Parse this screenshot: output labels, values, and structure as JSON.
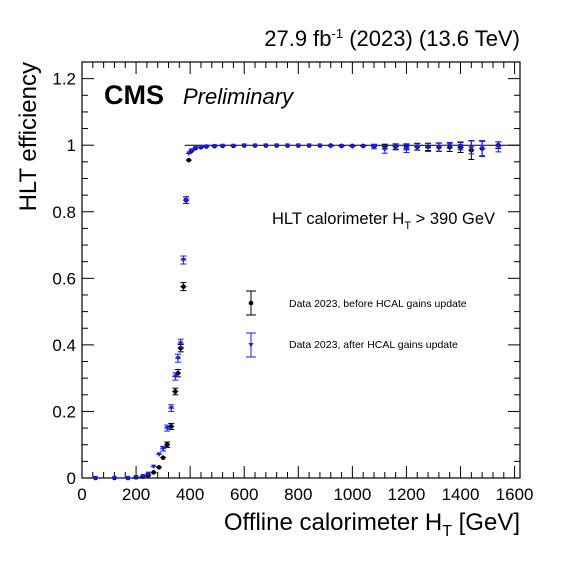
{
  "header": {
    "lumi_text": "27.9 fb",
    "lumi_sup": "-1",
    "lumi_rest": " (2023) (13.6 TeV)"
  },
  "branding": {
    "experiment": "CMS",
    "status": "Preliminary"
  },
  "chart_data": {
    "type": "scatter",
    "title": "",
    "xlabel": "Offline calorimeter H",
    "xlabel_sub": "T",
    "xlabel_unit": " [GeV]",
    "ylabel": "HLT efficiency",
    "xlim": [
      0,
      1620
    ],
    "ylim": [
      0,
      1.25
    ],
    "x_ticks": [
      0,
      200,
      400,
      600,
      800,
      1000,
      1200,
      1400,
      1600
    ],
    "x_tick_labels": [
      "0",
      "200",
      "400",
      "600",
      "800",
      "1000",
      "1200",
      "1400",
      "1600"
    ],
    "y_ticks": [
      0,
      0.2,
      0.4,
      0.6,
      0.8,
      1,
      1.2
    ],
    "y_tick_labels": [
      "0",
      "0.2",
      "0.4",
      "0.6",
      "0.8",
      "1",
      "1.2"
    ],
    "grid": false,
    "selection_label": {
      "main": "HLT calorimeter H",
      "sub": "T",
      "rest": " > 390 GeV"
    },
    "reference_line": 1.0,
    "legend_position": "middle-right",
    "series": [
      {
        "name": "Data 2023, before HCAL gains update",
        "color": "#000000",
        "marker": "circle",
        "points": [
          [
            50,
            0.0,
            0.0
          ],
          [
            120,
            0.0,
            0.0
          ],
          [
            170,
            0.0,
            0.0
          ],
          [
            200,
            0.002,
            0.001
          ],
          [
            225,
            0.004,
            0.002
          ],
          [
            245,
            0.008,
            0.003
          ],
          [
            265,
            0.017,
            0.004
          ],
          [
            285,
            0.032,
            0.005
          ],
          [
            300,
            0.061,
            0.006
          ],
          [
            315,
            0.1,
            0.008
          ],
          [
            330,
            0.155,
            0.009
          ],
          [
            345,
            0.26,
            0.01
          ],
          [
            355,
            0.315,
            0.011
          ],
          [
            365,
            0.39,
            0.011
          ],
          [
            375,
            0.575,
            0.012
          ],
          [
            385,
            0.835,
            0.01
          ],
          [
            395,
            0.955,
            0.006
          ],
          [
            405,
            0.983,
            0.004
          ],
          [
            420,
            0.991,
            0.003
          ],
          [
            440,
            0.994,
            0.003
          ],
          [
            460,
            0.996,
            0.002
          ],
          [
            490,
            0.997,
            0.002
          ],
          [
            520,
            0.998,
            0.002
          ],
          [
            560,
            0.998,
            0.002
          ],
          [
            600,
            0.999,
            0.002
          ],
          [
            640,
            0.999,
            0.002
          ],
          [
            680,
            0.999,
            0.002
          ],
          [
            720,
            0.999,
            0.002
          ],
          [
            760,
            0.999,
            0.002
          ],
          [
            800,
            0.999,
            0.002
          ],
          [
            840,
            0.999,
            0.003
          ],
          [
            880,
            0.999,
            0.003
          ],
          [
            920,
            0.999,
            0.003
          ],
          [
            960,
            0.998,
            0.004
          ],
          [
            1000,
            0.998,
            0.004
          ],
          [
            1040,
            0.998,
            0.005
          ],
          [
            1080,
            0.997,
            0.006
          ],
          [
            1120,
            0.996,
            0.007
          ],
          [
            1160,
            0.996,
            0.008
          ],
          [
            1200,
            0.995,
            0.009
          ],
          [
            1240,
            0.995,
            0.01
          ],
          [
            1280,
            0.995,
            0.011
          ],
          [
            1320,
            0.994,
            0.012
          ],
          [
            1360,
            0.994,
            0.013
          ],
          [
            1400,
            0.993,
            0.015
          ],
          [
            1440,
            0.985,
            0.028
          ],
          [
            1480,
            0.99,
            0.022
          ],
          [
            1540,
            1.0,
            0.01
          ]
        ]
      },
      {
        "name": "Data 2023, after HCAL gains update",
        "color": "#1a1aff",
        "marker": "triangle-down",
        "points": [
          [
            50,
            0.0,
            0.0
          ],
          [
            120,
            0.0,
            0.0
          ],
          [
            170,
            0.0,
            0.0
          ],
          [
            200,
            0.003,
            0.001
          ],
          [
            225,
            0.006,
            0.002
          ],
          [
            245,
            0.013,
            0.003
          ],
          [
            265,
            0.034,
            0.004
          ],
          [
            285,
            0.071,
            0.006
          ],
          [
            300,
            0.088,
            0.007
          ],
          [
            315,
            0.15,
            0.009
          ],
          [
            330,
            0.21,
            0.01
          ],
          [
            345,
            0.305,
            0.011
          ],
          [
            355,
            0.36,
            0.012
          ],
          [
            365,
            0.405,
            0.012
          ],
          [
            375,
            0.655,
            0.012
          ],
          [
            385,
            0.835,
            0.01
          ],
          [
            395,
            0.975,
            0.005
          ],
          [
            405,
            0.985,
            0.004
          ],
          [
            420,
            0.992,
            0.003
          ],
          [
            440,
            0.995,
            0.003
          ],
          [
            460,
            0.996,
            0.002
          ],
          [
            490,
            0.997,
            0.002
          ],
          [
            520,
            0.998,
            0.002
          ],
          [
            560,
            0.998,
            0.002
          ],
          [
            600,
            0.999,
            0.002
          ],
          [
            640,
            0.999,
            0.002
          ],
          [
            680,
            0.999,
            0.002
          ],
          [
            720,
            0.999,
            0.002
          ],
          [
            760,
            0.999,
            0.002
          ],
          [
            800,
            0.999,
            0.002
          ],
          [
            840,
            0.999,
            0.003
          ],
          [
            880,
            0.999,
            0.003
          ],
          [
            920,
            0.997,
            0.004
          ],
          [
            960,
            0.997,
            0.005
          ],
          [
            1000,
            0.996,
            0.006
          ],
          [
            1040,
            0.997,
            0.006
          ],
          [
            1080,
            0.996,
            0.007
          ],
          [
            1120,
            0.988,
            0.012
          ],
          [
            1160,
            0.995,
            0.009
          ],
          [
            1200,
            0.99,
            0.012
          ],
          [
            1240,
            0.996,
            0.01
          ],
          [
            1280,
            0.993,
            0.012
          ],
          [
            1320,
            0.994,
            0.013
          ],
          [
            1360,
            1.0,
            0.008
          ],
          [
            1400,
            0.998,
            0.012
          ],
          [
            1440,
            0.994,
            0.02
          ],
          [
            1480,
            0.99,
            0.024
          ],
          [
            1540,
            0.995,
            0.015
          ]
        ]
      }
    ]
  }
}
